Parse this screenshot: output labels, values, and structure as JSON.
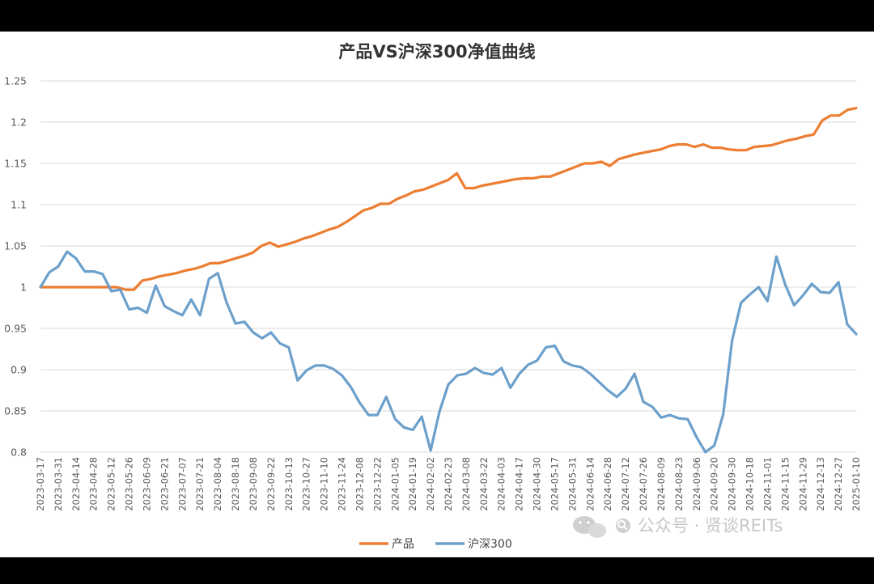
{
  "chart_data": {
    "type": "line",
    "title": "产品VS沪深300净值曲线",
    "y_ticks": [
      "0.8",
      "0.85",
      "0.9",
      "0.95",
      "1",
      "1.05",
      "1.1",
      "1.15",
      "1.2",
      "1.25"
    ],
    "ylim": [
      0.8,
      1.25
    ],
    "grid": true,
    "legend_position": "bottom-center",
    "x_tick_labels": [
      "2023-03-17",
      "2023-03-31",
      "2023-04-14",
      "2023-04-28",
      "2023-05-12",
      "2023-05-26",
      "2023-06-09",
      "2023-06-21",
      "2023-07-07",
      "2023-07-21",
      "2023-08-04",
      "2023-08-18",
      "2023-09-08",
      "2023-09-22",
      "2023-10-13",
      "2023-10-27",
      "2023-11-10",
      "2023-11-24",
      "2023-12-08",
      "2023-12-22",
      "2024-01-05",
      "2024-01-19",
      "2024-02-02",
      "2024-02-23",
      "2024-03-08",
      "2024-03-22",
      "2024-04-03",
      "2024-04-17",
      "2024-04-30",
      "2024-05-17",
      "2024-05-31",
      "2024-06-14",
      "2024-06-28",
      "2024-07-12",
      "2024-07-26",
      "2024-08-09",
      "2024-08-23",
      "2024-09-06",
      "2024-09-20",
      "2024-09-30",
      "2024-10-18",
      "2024-11-01",
      "2024-11-15",
      "2024-11-29",
      "2024-12-13",
      "2024-12-27",
      "2025-01-10"
    ],
    "series": [
      {
        "name": "产品",
        "color": "#ED7D31",
        "values": [
          1.0,
          1.0,
          1.0,
          1.0,
          1.0,
          1.0,
          1.0,
          1.0,
          1.0,
          1.0,
          0.997,
          0.997,
          1.008,
          1.01,
          1.013,
          1.015,
          1.017,
          1.02,
          1.022,
          1.025,
          1.029,
          1.029,
          1.032,
          1.035,
          1.038,
          1.042,
          1.05,
          1.054,
          1.049,
          1.052,
          1.055,
          1.059,
          1.062,
          1.066,
          1.07,
          1.073,
          1.079,
          1.086,
          1.093,
          1.096,
          1.101,
          1.101,
          1.107,
          1.111,
          1.116,
          1.118,
          1.122,
          1.126,
          1.13,
          1.138,
          1.12,
          1.12,
          1.123,
          1.125,
          1.127,
          1.129,
          1.131,
          1.132,
          1.132,
          1.134,
          1.134,
          1.138,
          1.142,
          1.146,
          1.15,
          1.15,
          1.152,
          1.147,
          1.155,
          1.158,
          1.161,
          1.163,
          1.165,
          1.167,
          1.171,
          1.173,
          1.173,
          1.17,
          1.173,
          1.169,
          1.169,
          1.167,
          1.166,
          1.166,
          1.17,
          1.171,
          1.172,
          1.175,
          1.178,
          1.18,
          1.183,
          1.185,
          1.202,
          1.208,
          1.208,
          1.215,
          1.217
        ]
      },
      {
        "name": "沪深300",
        "color": "#6CA0CB",
        "values": [
          1.0,
          1.018,
          1.025,
          1.043,
          1.035,
          1.019,
          1.019,
          1.016,
          0.995,
          0.997,
          0.973,
          0.975,
          0.969,
          1.002,
          0.977,
          0.971,
          0.966,
          0.985,
          0.966,
          1.01,
          1.017,
          0.981,
          0.956,
          0.958,
          0.945,
          0.938,
          0.945,
          0.932,
          0.927,
          0.887,
          0.899,
          0.905,
          0.905,
          0.901,
          0.893,
          0.879,
          0.86,
          0.845,
          0.845,
          0.867,
          0.84,
          0.83,
          0.827,
          0.843,
          0.802,
          0.849,
          0.882,
          0.893,
          0.895,
          0.902,
          0.896,
          0.894,
          0.902,
          0.878,
          0.895,
          0.906,
          0.911,
          0.927,
          0.929,
          0.91,
          0.905,
          0.903,
          0.895,
          0.885,
          0.875,
          0.867,
          0.877,
          0.895,
          0.861,
          0.855,
          0.842,
          0.845,
          0.841,
          0.84,
          0.818,
          0.8,
          0.808,
          0.846,
          0.935,
          0.981,
          0.991,
          1.0,
          0.983,
          1.037,
          1.003,
          0.978,
          0.99,
          1.004,
          0.994,
          0.993,
          1.006,
          0.955,
          0.943
        ]
      }
    ]
  },
  "watermark": {
    "text": "公众号 · 贤谈REITs",
    "icon": "wechat-icon"
  }
}
